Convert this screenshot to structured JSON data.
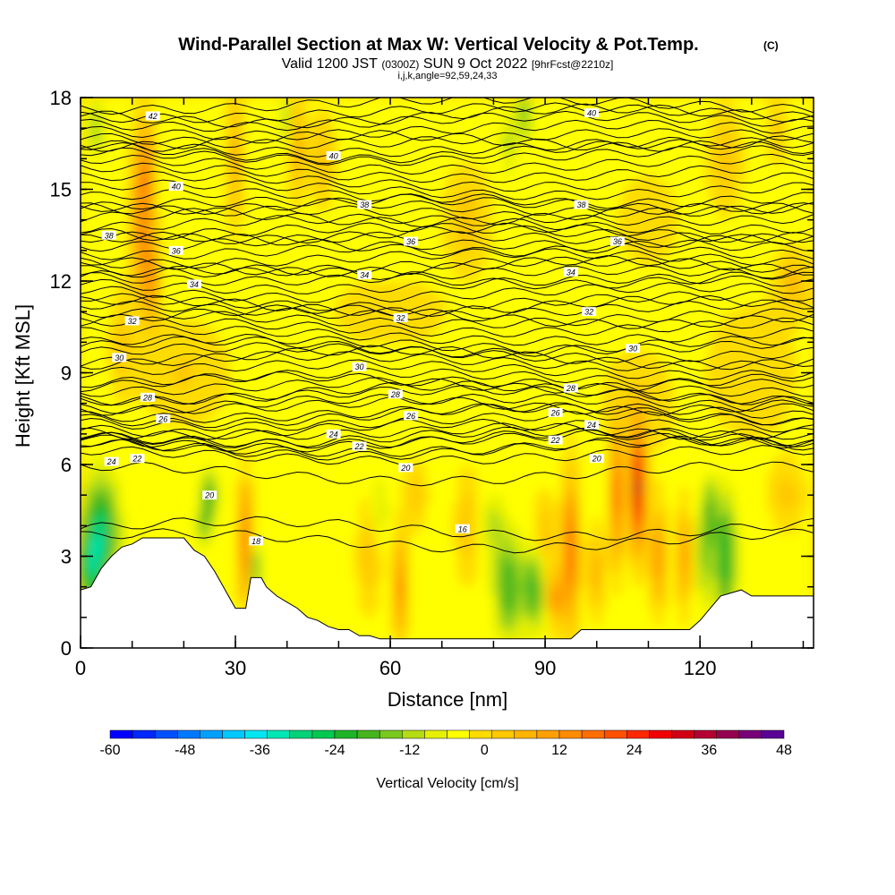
{
  "chart_data": {
    "type": "heatmap",
    "title_main": "Wind-Parallel Section at Max W: Vertical Velocity & Pot.Temp.",
    "title_mark": "(C)",
    "subtitle": {
      "valid": "Valid 1200 JST",
      "utc": "(0300Z)",
      "date": "SUN 9 Oct 2022",
      "fcst": "[9hrFcst@2210z]"
    },
    "params": "i,j,k,angle=92,59,24,33",
    "xlabel": "Distance [nm]",
    "ylabel": "Height [Kft MSL]",
    "xlim": [
      0,
      142
    ],
    "ylim": [
      0,
      18
    ],
    "x_ticks": [
      0,
      30,
      60,
      90,
      120
    ],
    "y_ticks": [
      0,
      3,
      6,
      9,
      12,
      15,
      18
    ],
    "colorbar": {
      "label": "Vertical Velocity [cm/s]",
      "min": -60,
      "max": 48,
      "step": 4,
      "tick_labels": [
        -60,
        -48,
        -36,
        -24,
        -12,
        0,
        12,
        24,
        36,
        48
      ],
      "colors": [
        "#0000ff",
        "#0028ff",
        "#0050ff",
        "#0078ff",
        "#00a0ff",
        "#00c8ff",
        "#00e6f0",
        "#00e6b4",
        "#00d278",
        "#00c850",
        "#1eb428",
        "#46b41e",
        "#78c81e",
        "#b4dc14",
        "#e6f000",
        "#ffff00",
        "#ffdc00",
        "#ffc800",
        "#ffb400",
        "#ffa000",
        "#ff8c00",
        "#ff6e00",
        "#ff5000",
        "#ff2800",
        "#f00000",
        "#d20014",
        "#b40032",
        "#960050",
        "#780078",
        "#5a0096"
      ]
    },
    "theta_labels": [
      {
        "x": 14,
        "y": 17.4,
        "v": "42"
      },
      {
        "x": 99,
        "y": 17.5,
        "v": "40"
      },
      {
        "x": 49,
        "y": 16.1,
        "v": "40"
      },
      {
        "x": 18.5,
        "y": 15.1,
        "v": "40"
      },
      {
        "x": 5.5,
        "y": 13.5,
        "v": "38"
      },
      {
        "x": 55,
        "y": 14.5,
        "v": "38"
      },
      {
        "x": 97,
        "y": 14.5,
        "v": "38"
      },
      {
        "x": 18.5,
        "y": 13.0,
        "v": "36"
      },
      {
        "x": 64,
        "y": 13.3,
        "v": "36"
      },
      {
        "x": 104,
        "y": 13.3,
        "v": "36"
      },
      {
        "x": 22,
        "y": 11.9,
        "v": "34"
      },
      {
        "x": 55,
        "y": 12.2,
        "v": "34"
      },
      {
        "x": 95,
        "y": 12.3,
        "v": "34"
      },
      {
        "x": 10,
        "y": 10.7,
        "v": "32"
      },
      {
        "x": 62,
        "y": 10.8,
        "v": "32"
      },
      {
        "x": 98.5,
        "y": 11.0,
        "v": "32"
      },
      {
        "x": 7.5,
        "y": 9.5,
        "v": "30"
      },
      {
        "x": 54,
        "y": 9.2,
        "v": "30"
      },
      {
        "x": 107,
        "y": 9.8,
        "v": "30"
      },
      {
        "x": 13,
        "y": 8.2,
        "v": "28"
      },
      {
        "x": 61,
        "y": 8.3,
        "v": "28"
      },
      {
        "x": 95,
        "y": 8.5,
        "v": "28"
      },
      {
        "x": 16,
        "y": 7.5,
        "v": "26"
      },
      {
        "x": 64,
        "y": 7.6,
        "v": "26"
      },
      {
        "x": 92,
        "y": 7.7,
        "v": "26"
      },
      {
        "x": 49,
        "y": 7.0,
        "v": "24"
      },
      {
        "x": 99,
        "y": 7.3,
        "v": "24"
      },
      {
        "x": 6,
        "y": 6.1,
        "v": "24"
      },
      {
        "x": 11,
        "y": 6.2,
        "v": "22"
      },
      {
        "x": 54,
        "y": 6.6,
        "v": "22"
      },
      {
        "x": 92,
        "y": 6.8,
        "v": "22"
      },
      {
        "x": 25,
        "y": 5.0,
        "v": "20"
      },
      {
        "x": 63,
        "y": 5.9,
        "v": "20"
      },
      {
        "x": 100,
        "y": 6.2,
        "v": "20"
      },
      {
        "x": 34,
        "y": 3.5,
        "v": "18"
      },
      {
        "x": 74,
        "y": 3.9,
        "v": "16"
      }
    ]
  }
}
